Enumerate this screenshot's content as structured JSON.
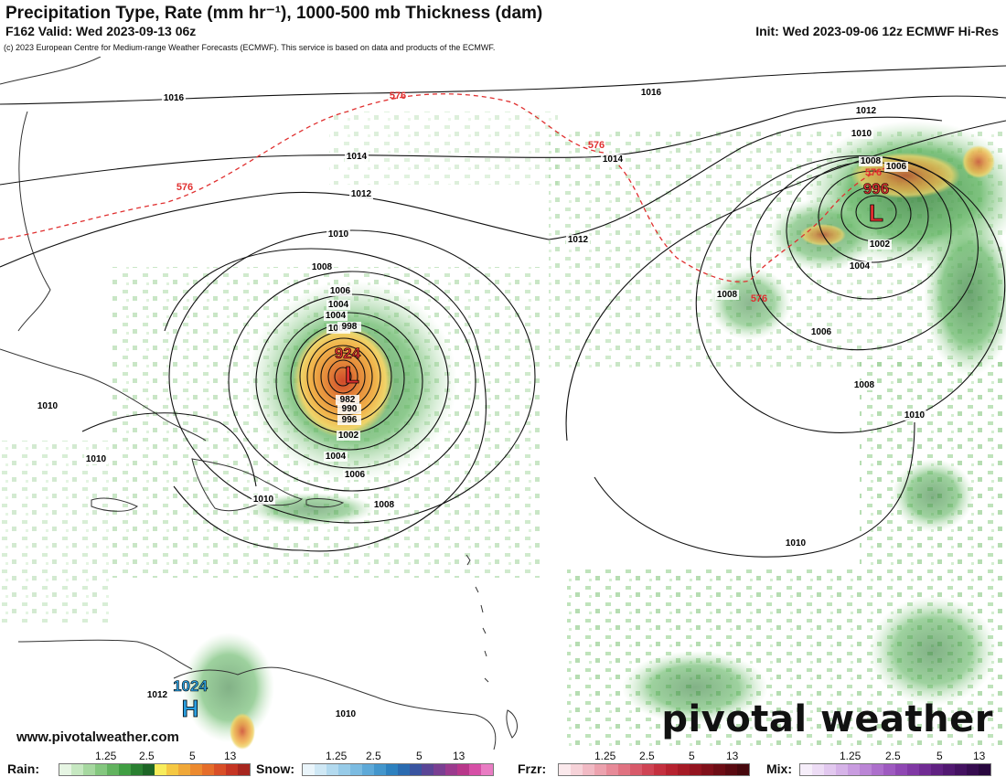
{
  "header": {
    "title": "Precipitation Type, Rate (mm hr⁻¹), 1000-500 mb Thickness (dam)",
    "valid": "F162 Valid: Wed 2023-09-13 06z",
    "init": "Init: Wed 2023-09-06 12z ECMWF Hi-Res",
    "copyright": "(c) 2023 European Centre for Medium-range Weather Forecasts (ECMWF). This service is based on data and products of the ECMWF."
  },
  "map": {
    "centers": [
      {
        "type": "L",
        "pressure": "924",
        "color": "#e03030"
      },
      {
        "type": "L",
        "pressure": "996",
        "color": "#e03030"
      },
      {
        "type": "H",
        "pressure": "1024",
        "color": "#2a9fe0"
      }
    ],
    "isobar_labels": [
      "1016",
      "1016",
      "1014",
      "1014",
      "1014",
      "1012",
      "1012",
      "1012",
      "1010",
      "1010",
      "1010",
      "1010",
      "1010",
      "1010",
      "1010",
      "1008",
      "1008",
      "1008",
      "1008",
      "1006",
      "1006",
      "1006",
      "1004",
      "1004",
      "1004",
      "1002",
      "1002",
      "1000",
      "998",
      "996",
      "990",
      "982",
      "1012",
      "1010",
      "1008",
      "1006",
      "1004"
    ],
    "thickness_labels": [
      "576",
      "576",
      "576",
      "576",
      "576"
    ],
    "website": "www.pivotalweather.com",
    "brand": "pivotal weather",
    "colors": {
      "rain": "#3fa04a",
      "thickness": "#e03030",
      "low": "#e03030",
      "high": "#2a9fe0"
    }
  },
  "legend": {
    "rain": {
      "label": "Rain:",
      "ticks": [
        "1.25",
        "2.5",
        "5",
        "13"
      ]
    },
    "snow": {
      "label": "Snow:",
      "ticks": [
        "1.25",
        "2.5",
        "5",
        "13"
      ]
    },
    "frzr": {
      "label": "Frzr:",
      "ticks": [
        "1.25",
        "2.5",
        "5",
        "13"
      ]
    },
    "mix": {
      "label": "Mix:",
      "ticks": [
        "1.25",
        "2.5",
        "5",
        "13"
      ]
    }
  }
}
